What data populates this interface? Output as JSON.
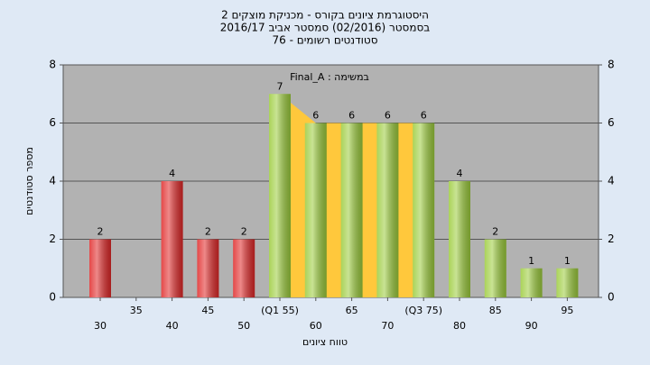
{
  "chart_data": {
    "type": "bar",
    "title": [
      "היסטוגרמת ציונים בקורס - מכניקת מוצקים 2",
      "בסמסטר  (02/2016)  סמסטר אביב 2016/17",
      "סטודנטים רשומים - 76"
    ],
    "annotation": "במשימה : Final_A",
    "x_label": "טווח ציונים",
    "y_label": "מספר סטודנטים",
    "categories": [
      "30",
      "35",
      "40",
      "45",
      "50",
      "(Q1 55)",
      "60",
      "65",
      "70",
      "(Q3 75)",
      "80",
      "85",
      "90",
      "95"
    ],
    "values": [
      2,
      null,
      4,
      2,
      2,
      7,
      6,
      6,
      6,
      6,
      4,
      2,
      1,
      1
    ],
    "colors": [
      "#e02828",
      "#e02828",
      "#e02828",
      "#e02828",
      "#e02828",
      "#9ccc3c",
      "#9ccc3c",
      "#9ccc3c",
      "#9ccc3c",
      "#9ccc3c",
      "#9ccc3c",
      "#9ccc3c",
      "#9ccc3c",
      "#9ccc3c"
    ],
    "band_color": "#ffc83c",
    "ylim": [
      0,
      8
    ],
    "yticks": [
      0,
      2,
      4,
      6,
      8
    ],
    "grid": true
  }
}
